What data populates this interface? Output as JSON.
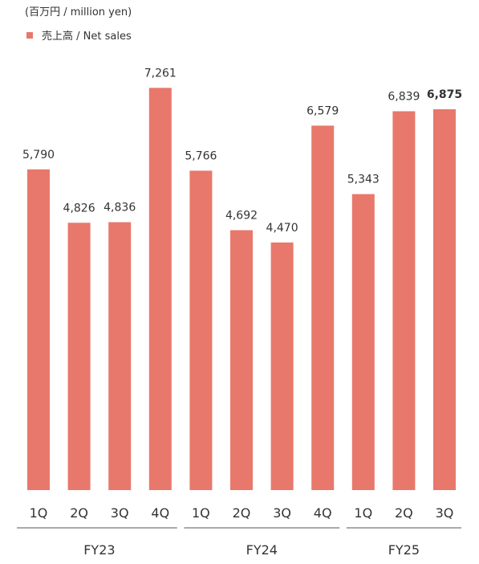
{
  "unit_label": "(百万円 / million yen)",
  "legend": {
    "label": "売上高 / Net sales",
    "color": "#e8786b"
  },
  "chart_data": {
    "type": "bar",
    "title": "",
    "ylabel": "(百万円 / million yen)",
    "xlabel": "",
    "ylim": [
      0,
      7600
    ],
    "grid": false,
    "legend_position": "top-left",
    "color": "#e8786b",
    "groups": [
      {
        "label": "FY23",
        "quarters": [
          "1Q",
          "2Q",
          "3Q",
          "4Q"
        ]
      },
      {
        "label": "FY24",
        "quarters": [
          "1Q",
          "2Q",
          "3Q",
          "4Q"
        ]
      },
      {
        "label": "FY25",
        "quarters": [
          "1Q",
          "2Q",
          "3Q"
        ]
      }
    ],
    "categories": [
      "1Q",
      "2Q",
      "3Q",
      "4Q",
      "1Q",
      "2Q",
      "3Q",
      "4Q",
      "1Q",
      "2Q",
      "3Q"
    ],
    "series": [
      {
        "name": "売上高 / Net sales",
        "values": [
          5790,
          4826,
          4836,
          7261,
          5766,
          4692,
          4470,
          6579,
          5343,
          6839,
          6875
        ]
      }
    ],
    "value_labels": [
      "5,790",
      "4,826",
      "4,836",
      "7,261",
      "5,766",
      "4,692",
      "4,470",
      "6,579",
      "5,343",
      "6,839",
      "6,875"
    ],
    "highlight_last_label": true
  }
}
